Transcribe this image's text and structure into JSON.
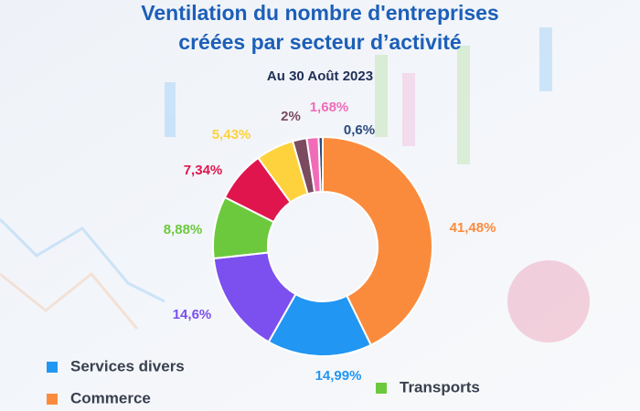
{
  "chart_data": {
    "type": "pie",
    "title": [
      "Ventilation du nombre d'entreprises",
      "créées par secteur d’activité"
    ],
    "subtitle": "Au 30 Août 2023",
    "categories": [
      null,
      "Commerce",
      "Services divers",
      null,
      "Transports",
      null,
      null,
      null,
      null
    ],
    "values": [
      0.6,
      41.48,
      14.99,
      14.6,
      8.88,
      7.34,
      5.43,
      2,
      1.68
    ],
    "value_labels": [
      "0,6%",
      "41,48%",
      "14,99%",
      "14,6%",
      "8,88%",
      "7,34%",
      "5,43%",
      "2%",
      "1,68%"
    ],
    "colors": [
      "#2c4a7c",
      "#fb8b3c",
      "#2196f3",
      "#7b50ee",
      "#6cc93e",
      "#e0154d",
      "#fdd23d",
      "#7a4a5f",
      "#f06cb8"
    ]
  }
}
